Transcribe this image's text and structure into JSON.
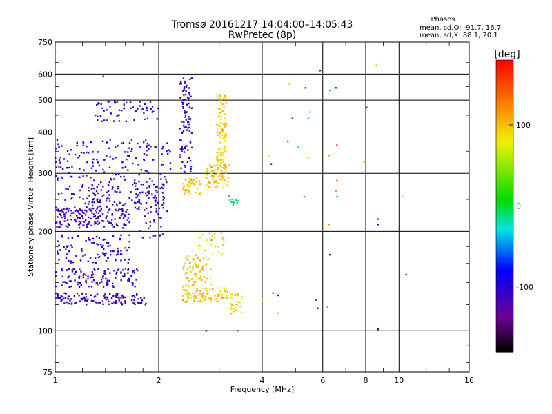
{
  "chart_data": {
    "type": "scatter",
    "title": "Tromsø 20161217 14:04:00–14:05:43",
    "subtitle": "RwPretec (8p)",
    "xlabel": "Frequency [MHz]",
    "ylabel": "Stationary phase Virtual Height [km]",
    "xscale": "log",
    "yscale": "log",
    "xlim": [
      1,
      16
    ],
    "ylim": [
      75,
      750
    ],
    "xticks": [
      {
        "value": 1,
        "label": "1"
      },
      {
        "value": 2,
        "label": "2"
      },
      {
        "value": 4,
        "label": "4"
      },
      {
        "value": 6,
        "label": "6"
      },
      {
        "value": 8,
        "label": "8"
      },
      {
        "value": 10,
        "label": "10"
      },
      {
        "value": 16,
        "label": "16"
      }
    ],
    "yticks": [
      {
        "value": 75,
        "label": "75"
      },
      {
        "value": 100,
        "label": "100"
      },
      {
        "value": 200,
        "label": "200"
      },
      {
        "value": 300,
        "label": "300"
      },
      {
        "value": 400,
        "label": "400"
      },
      {
        "value": 500,
        "label": "500"
      },
      {
        "value": 600,
        "label": "600"
      },
      {
        "value": 750,
        "label": "750"
      }
    ],
    "grid": true,
    "phase_stats": {
      "heading": "Phases",
      "line1": "mean, sd,O: -91.7, 16.7",
      "line2": "mean, sd,X:  88.1, 20.1"
    },
    "colorbar": {
      "label": "[deg]",
      "range": [
        -180,
        180
      ],
      "ticks": [
        {
          "value": 100,
          "label": "100"
        },
        {
          "value": 0,
          "label": "0"
        },
        {
          "value": -100,
          "label": "-100"
        }
      ]
    },
    "clusters": [
      {
        "x": [
          1.0,
          1.65
        ],
        "y": [
          205,
          235
        ],
        "phase": -110,
        "spread": 12,
        "n": 150
      },
      {
        "x": [
          1.0,
          2.1
        ],
        "y": [
          230,
          280
        ],
        "phase": -108,
        "spread": 15,
        "n": 150
      },
      {
        "x": [
          1.0,
          2.2
        ],
        "y": [
          280,
          380
        ],
        "phase": -105,
        "spread": 18,
        "n": 150
      },
      {
        "x": [
          1.3,
          2.0
        ],
        "y": [
          430,
          500
        ],
        "phase": -110,
        "spread": 10,
        "n": 60
      },
      {
        "x": [
          1.75,
          2.15
        ],
        "y": [
          190,
          290
        ],
        "phase": -115,
        "spread": 12,
        "n": 50
      },
      {
        "x": [
          1.0,
          1.85
        ],
        "y": [
          120,
          130
        ],
        "phase": -108,
        "spread": 14,
        "n": 120
      },
      {
        "x": [
          1.0,
          1.75
        ],
        "y": [
          135,
          155
        ],
        "phase": -105,
        "spread": 18,
        "n": 120
      },
      {
        "x": [
          1.0,
          1.65
        ],
        "y": [
          160,
          195
        ],
        "phase": -105,
        "spread": 18,
        "n": 100
      },
      {
        "x": [
          2.3,
          2.5
        ],
        "y": [
          300,
          600
        ],
        "phase": -105,
        "spread": 12,
        "n": 100
      },
      {
        "x": [
          2.35,
          2.65
        ],
        "y": [
          260,
          290
        ],
        "phase": 95,
        "spread": 15,
        "n": 40
      },
      {
        "x": [
          2.75,
          3.2
        ],
        "y": [
          270,
          320
        ],
        "phase": 100,
        "spread": 15,
        "n": 60
      },
      {
        "x": [
          2.95,
          3.15
        ],
        "y": [
          300,
          520
        ],
        "phase": 95,
        "spread": 20,
        "n": 110
      },
      {
        "x": [
          2.35,
          3.2
        ],
        "y": [
          122,
          135
        ],
        "phase": 95,
        "spread": 20,
        "n": 80
      },
      {
        "x": [
          2.35,
          2.85
        ],
        "y": [
          135,
          170
        ],
        "phase": 100,
        "spread": 20,
        "n": 70
      },
      {
        "x": [
          2.6,
          3.1
        ],
        "y": [
          170,
          205
        ],
        "phase": 95,
        "spread": 25,
        "n": 25
      },
      {
        "x": [
          3.2,
          3.5
        ],
        "y": [
          112,
          130
        ],
        "phase": 90,
        "spread": 25,
        "n": 30
      },
      {
        "x": [
          3.2,
          3.5
        ],
        "y": [
          240,
          260
        ],
        "phase": -10,
        "spread": 5,
        "n": 10
      }
    ],
    "points": [
      {
        "x": 1.38,
        "y": 590,
        "phase": -110
      },
      {
        "x": 4.8,
        "y": 560,
        "phase": 95
      },
      {
        "x": 5.35,
        "y": 545,
        "phase": -110
      },
      {
        "x": 6.3,
        "y": 535,
        "phase": -10
      },
      {
        "x": 6.55,
        "y": 545,
        "phase": -120
      },
      {
        "x": 5.9,
        "y": 615,
        "phase": -110
      },
      {
        "x": 8.6,
        "y": 640,
        "phase": 95
      },
      {
        "x": 8.05,
        "y": 475,
        "phase": -105
      },
      {
        "x": 5.5,
        "y": 460,
        "phase": 40
      },
      {
        "x": 4.9,
        "y": 440,
        "phase": -110
      },
      {
        "x": 5.45,
        "y": 440,
        "phase": -15
      },
      {
        "x": 4.75,
        "y": 375,
        "phase": 150
      },
      {
        "x": 5.1,
        "y": 360,
        "phase": -5
      },
      {
        "x": 6.6,
        "y": 365,
        "phase": 150
      },
      {
        "x": 4.2,
        "y": 340,
        "phase": 95
      },
      {
        "x": 4.25,
        "y": 320,
        "phase": -110
      },
      {
        "x": 5.45,
        "y": 335,
        "phase": 95
      },
      {
        "x": 6.25,
        "y": 340,
        "phase": 120
      },
      {
        "x": 7.9,
        "y": 325,
        "phase": 95
      },
      {
        "x": 6.6,
        "y": 285,
        "phase": 150
      },
      {
        "x": 6.55,
        "y": 265,
        "phase": 120
      },
      {
        "x": 6.6,
        "y": 255,
        "phase": 0
      },
      {
        "x": 5.3,
        "y": 255,
        "phase": 150
      },
      {
        "x": 10.3,
        "y": 255,
        "phase": 100
      },
      {
        "x": 8.7,
        "y": 218,
        "phase": 170
      },
      {
        "x": 8.7,
        "y": 210,
        "phase": -100
      },
      {
        "x": 6.25,
        "y": 210,
        "phase": 120
      },
      {
        "x": 6.3,
        "y": 170,
        "phase": -110
      },
      {
        "x": 10.5,
        "y": 148,
        "phase": -110
      },
      {
        "x": 4.3,
        "y": 130,
        "phase": 150
      },
      {
        "x": 4.45,
        "y": 128,
        "phase": -110
      },
      {
        "x": 4.0,
        "y": 124,
        "phase": 95
      },
      {
        "x": 5.75,
        "y": 124,
        "phase": -110
      },
      {
        "x": 6.2,
        "y": 118,
        "phase": 120
      },
      {
        "x": 4.45,
        "y": 113,
        "phase": 95
      },
      {
        "x": 5.8,
        "y": 117,
        "phase": -110
      },
      {
        "x": 3.4,
        "y": 100,
        "phase": 150
      },
      {
        "x": 2.75,
        "y": 100,
        "phase": -100
      },
      {
        "x": 8.7,
        "y": 101,
        "phase": -110
      }
    ]
  }
}
